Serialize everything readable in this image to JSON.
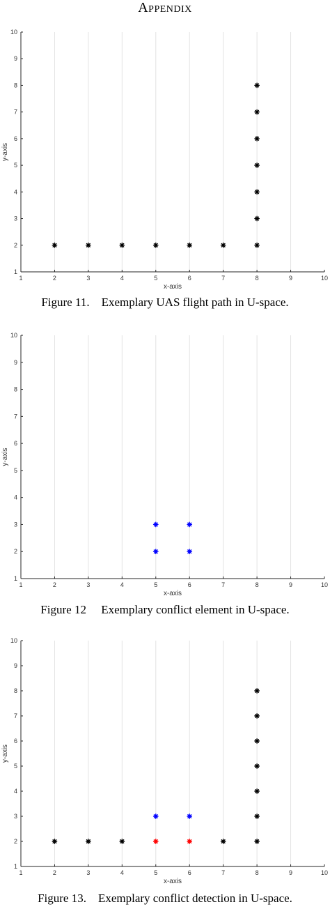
{
  "heading": "Appendix",
  "figures": [
    {
      "caption": "Figure 11.    Exemplary UAS flight path in U-space."
    },
    {
      "caption": "Figure 12     Exemplary conflict element in U-space."
    },
    {
      "caption": "Figure 13.    Exemplary conflict detection in U-space."
    }
  ],
  "colors": {
    "black": "#000000",
    "blue": "#0000ff",
    "red": "#ff0000",
    "grid": "#e3e3e3",
    "axis": "#262626"
  },
  "chart_data": [
    {
      "type": "scatter",
      "title": "",
      "xlabel": "x-axis",
      "ylabel": "y-axis",
      "xlim": [
        1,
        10
      ],
      "ylim": [
        1,
        10
      ],
      "xticks": [
        1,
        2,
        3,
        4,
        5,
        6,
        7,
        8,
        9,
        10
      ],
      "yticks": [
        1,
        2,
        3,
        4,
        5,
        6,
        7,
        8,
        9,
        10
      ],
      "grid": "x-only",
      "marker": "*",
      "series": [
        {
          "color": "#000000",
          "points": [
            [
              2,
              2
            ],
            [
              3,
              2
            ],
            [
              4,
              2
            ],
            [
              5,
              2
            ],
            [
              6,
              2
            ],
            [
              7,
              2
            ],
            [
              8,
              2
            ],
            [
              8,
              3
            ],
            [
              8,
              4
            ],
            [
              8,
              5
            ],
            [
              8,
              6
            ],
            [
              8,
              7
            ],
            [
              8,
              8
            ]
          ]
        }
      ]
    },
    {
      "type": "scatter",
      "title": "",
      "xlabel": "x-axis",
      "ylabel": "y-axis",
      "xlim": [
        1,
        10
      ],
      "ylim": [
        1,
        10
      ],
      "xticks": [
        1,
        2,
        3,
        4,
        5,
        6,
        7,
        8,
        9,
        10
      ],
      "yticks": [
        1,
        2,
        3,
        4,
        5,
        6,
        7,
        8,
        9,
        10
      ],
      "grid": "x-only",
      "marker": "*",
      "series": [
        {
          "color": "#0000ff",
          "points": [
            [
              5,
              2
            ],
            [
              6,
              2
            ],
            [
              5,
              3
            ],
            [
              6,
              3
            ]
          ]
        }
      ]
    },
    {
      "type": "scatter",
      "title": "",
      "xlabel": "x-axis",
      "ylabel": "y-axis",
      "xlim": [
        1,
        10
      ],
      "ylim": [
        1,
        10
      ],
      "xticks": [
        1,
        2,
        3,
        4,
        5,
        6,
        7,
        8,
        9,
        10
      ],
      "yticks": [
        1,
        2,
        3,
        4,
        5,
        6,
        7,
        8,
        9,
        10
      ],
      "grid": "x-only",
      "marker": "*",
      "series": [
        {
          "color": "#000000",
          "points": [
            [
              2,
              2
            ],
            [
              3,
              2
            ],
            [
              4,
              2
            ],
            [
              7,
              2
            ],
            [
              8,
              2
            ],
            [
              8,
              3
            ],
            [
              8,
              4
            ],
            [
              8,
              5
            ],
            [
              8,
              6
            ],
            [
              8,
              7
            ],
            [
              8,
              8
            ]
          ]
        },
        {
          "color": "#0000ff",
          "points": [
            [
              5,
              3
            ],
            [
              6,
              3
            ]
          ]
        },
        {
          "color": "#ff0000",
          "points": [
            [
              5,
              2
            ],
            [
              6,
              2
            ]
          ]
        }
      ]
    }
  ]
}
